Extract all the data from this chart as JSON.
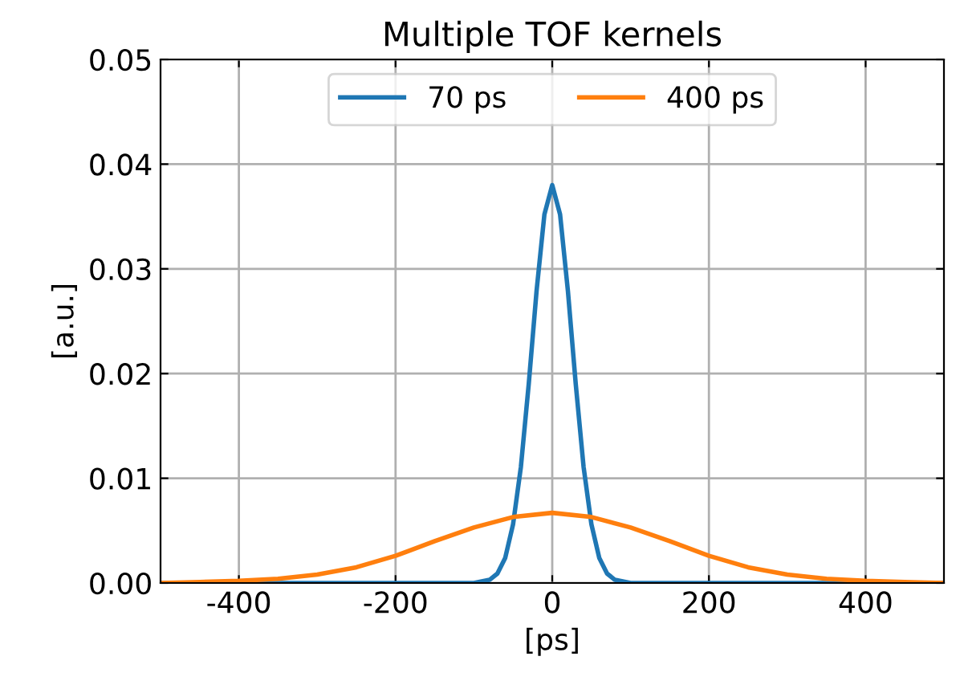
{
  "chart_data": {
    "type": "line",
    "title": "Multiple TOF kernels",
    "xlabel": "[ps]",
    "ylabel": "[a.u.]",
    "series": [
      {
        "name": "70 ps",
        "color": "#1f77b4",
        "x": [
          -500,
          -100,
          -80,
          -70,
          -60,
          -50,
          -40,
          -30,
          -20,
          -10,
          0,
          10,
          20,
          30,
          40,
          50,
          60,
          70,
          80,
          100,
          500
        ],
        "values": [
          0,
          0,
          0.0003,
          0.0009,
          0.0024,
          0.0056,
          0.0111,
          0.019,
          0.0279,
          0.0352,
          0.038,
          0.0352,
          0.0279,
          0.019,
          0.0111,
          0.0056,
          0.0024,
          0.0009,
          0.0003,
          0,
          0
        ]
      },
      {
        "name": "400 ps",
        "color": "#ff7f0e",
        "x": [
          -500,
          -450,
          -400,
          -350,
          -300,
          -250,
          -200,
          -150,
          -100,
          -50,
          0,
          50,
          100,
          150,
          200,
          250,
          300,
          350,
          400,
          450,
          500
        ],
        "values": [
          0,
          0.0001,
          0.0002,
          0.0004,
          0.0008,
          0.0015,
          0.0026,
          0.004,
          0.0053,
          0.0063,
          0.0067,
          0.0063,
          0.0053,
          0.004,
          0.0026,
          0.0015,
          0.0008,
          0.0004,
          0.0002,
          0.0001,
          0
        ]
      }
    ],
    "xlim": [
      -500,
      500
    ],
    "xticks": [
      -400,
      -200,
      0,
      200,
      400
    ],
    "ylim": [
      0,
      0.05
    ],
    "yticks": [
      {
        "value": 0,
        "label": "0.00"
      },
      {
        "value": 0.01,
        "label": "0.01"
      },
      {
        "value": 0.02,
        "label": "0.02"
      },
      {
        "value": 0.03,
        "label": "0.03"
      },
      {
        "value": 0.04,
        "label": "0.04"
      },
      {
        "value": 0.05,
        "label": "0.05"
      }
    ],
    "grid": true,
    "legend": "top",
    "marker": "none",
    "line_style": "solid"
  }
}
